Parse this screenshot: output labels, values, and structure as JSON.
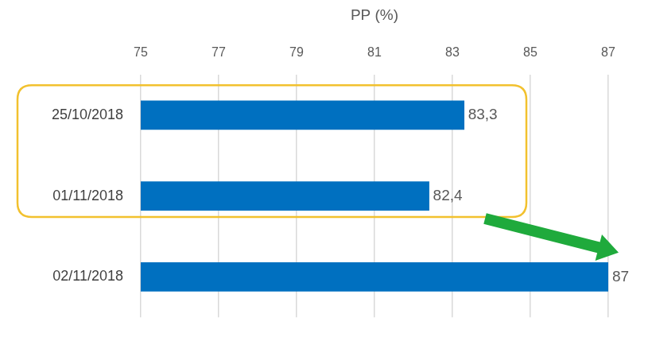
{
  "chart_data": {
    "type": "bar",
    "orientation": "horizontal",
    "x_label": "PP (%)",
    "categories": [
      "25/10/2018",
      "01/11/2018",
      "02/11/2018"
    ],
    "values": [
      83.3,
      82.4,
      87
    ],
    "value_labels": [
      "83,3",
      "82,4",
      "87"
    ],
    "color": "#0070c0",
    "xlim": [
      75,
      87
    ],
    "xticks": [
      75,
      77,
      79,
      81,
      83,
      85,
      87
    ],
    "grid": true,
    "data_labels": true
  }
}
